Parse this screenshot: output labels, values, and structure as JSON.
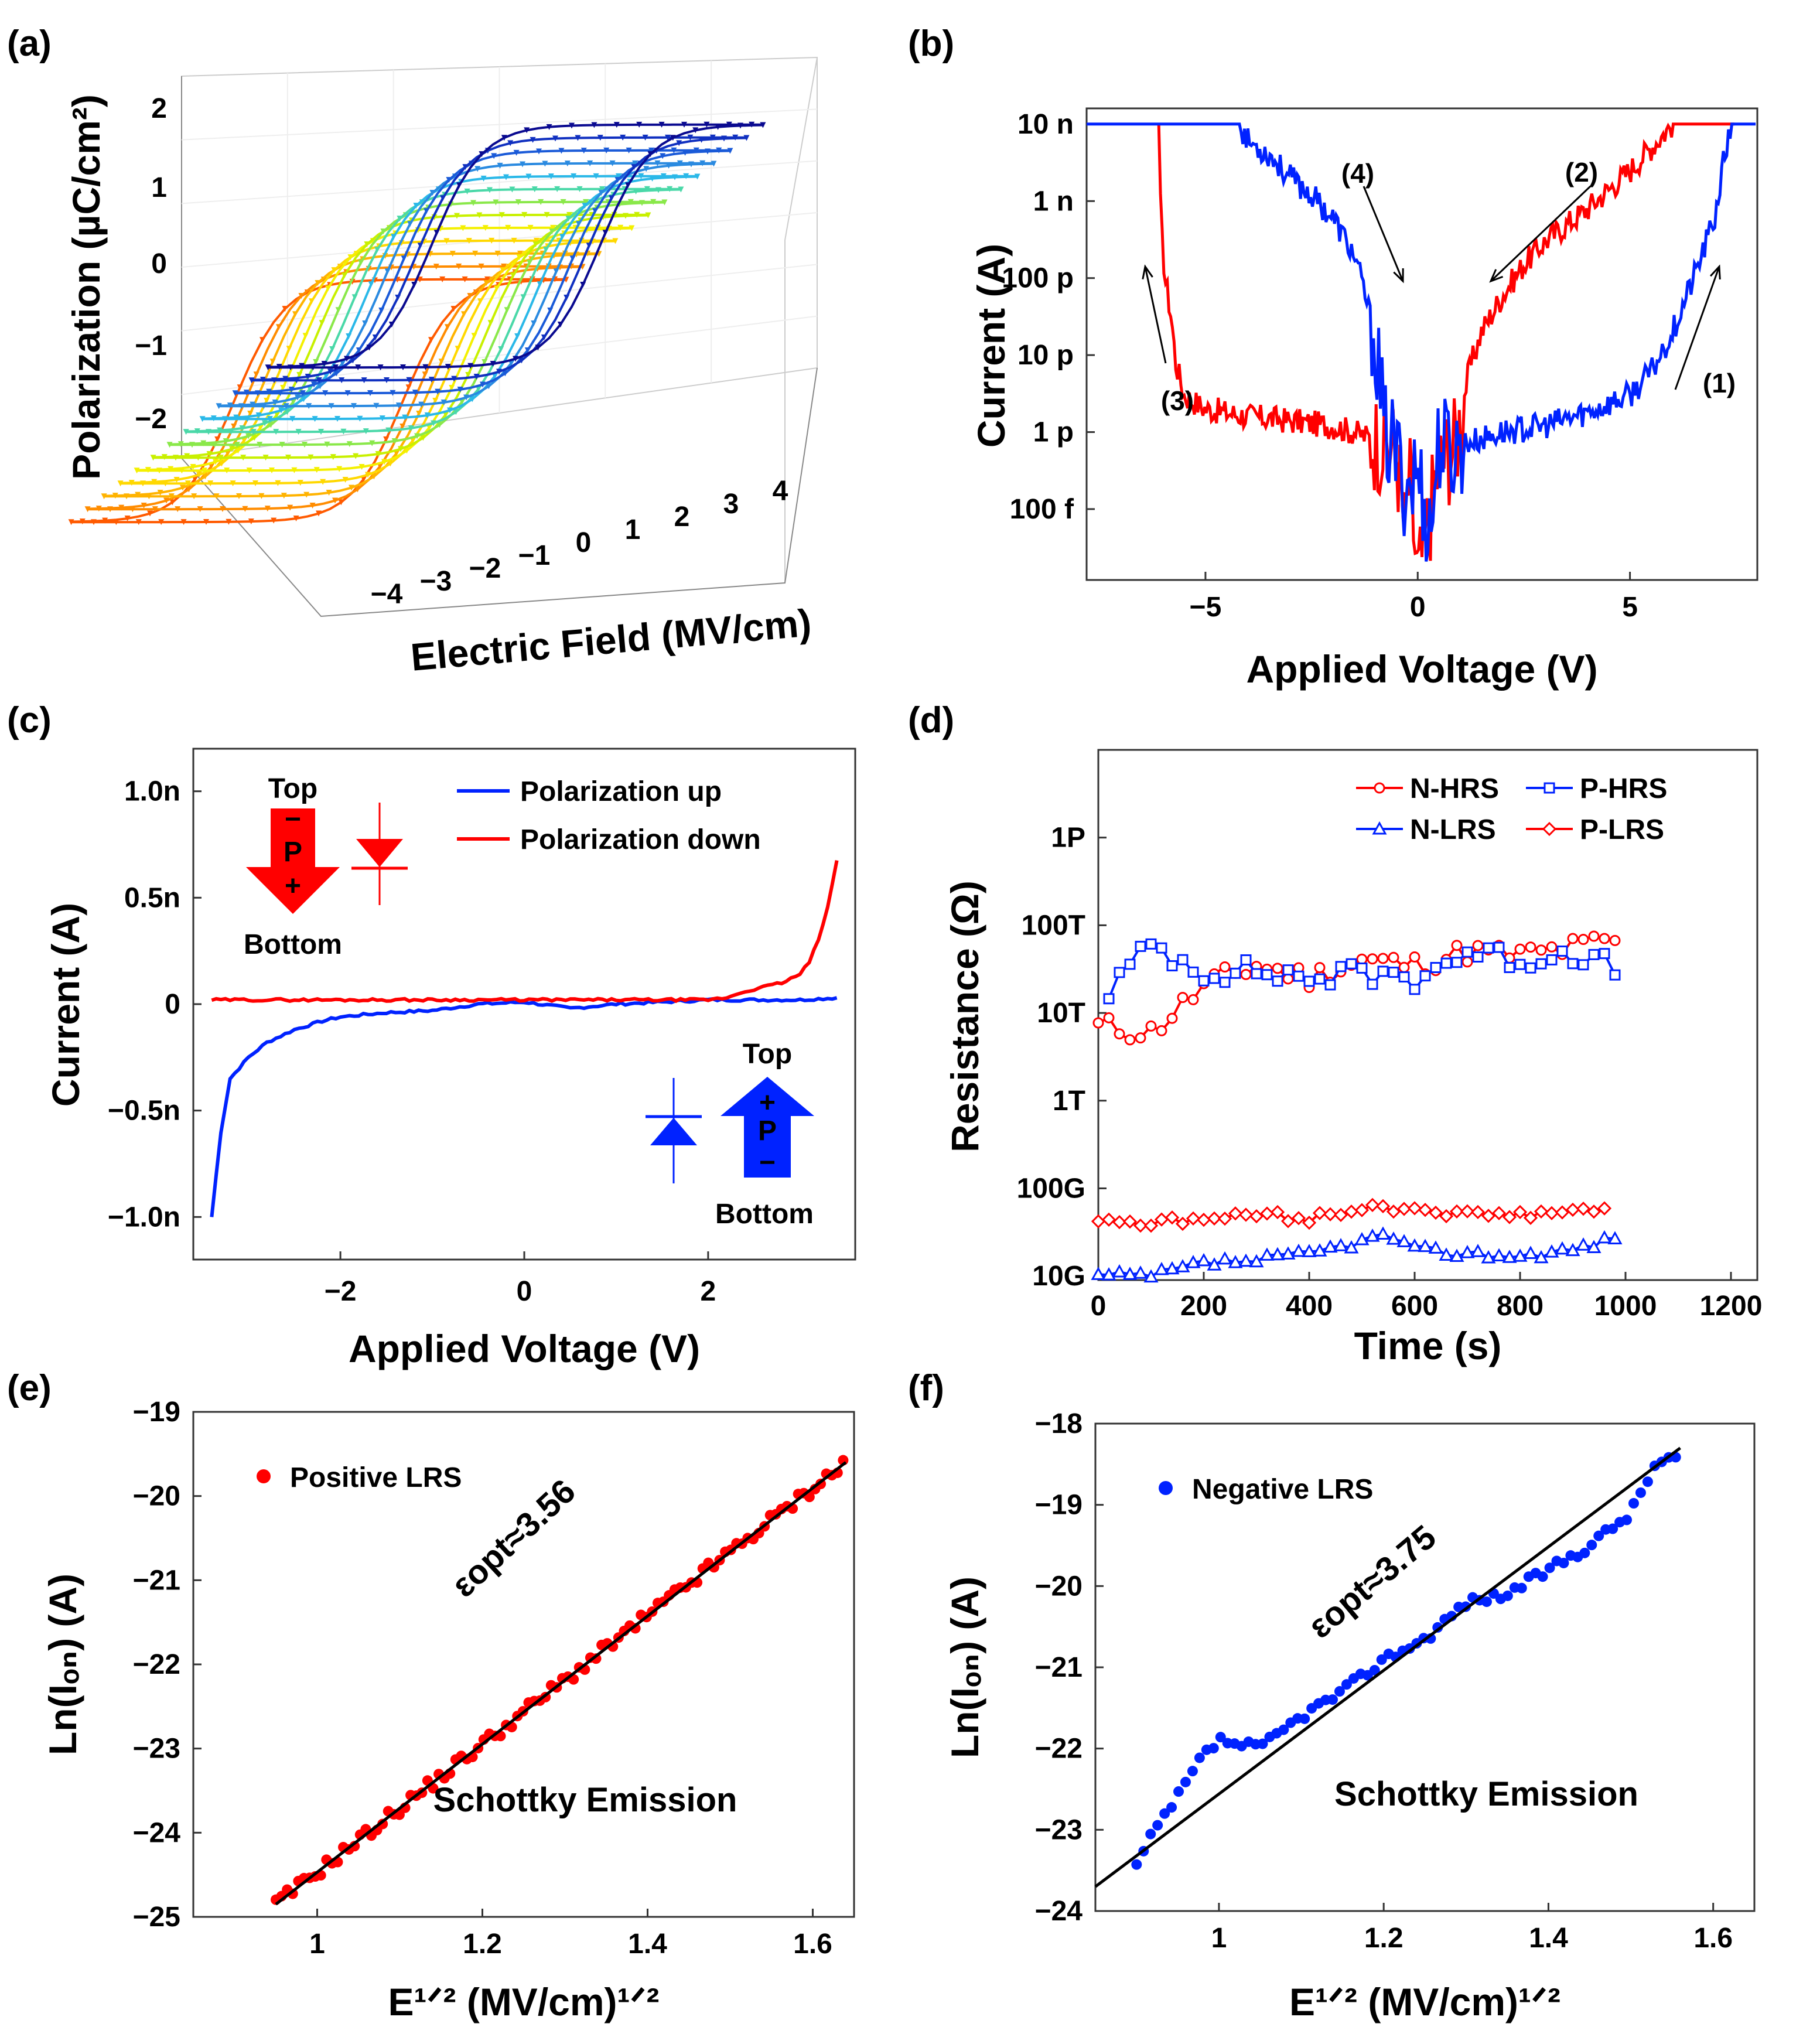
{
  "panel_labels": [
    "(a)",
    "(b)",
    "(c)",
    "(d)",
    "(e)",
    "(f)"
  ],
  "chart_data": [
    {
      "panel": "(a)",
      "type": "line",
      "projection": "3d",
      "xlabel": "Electric Field (MV/cm)",
      "ylabel": "Polarization (µC/cm²)",
      "x_ticks": [
        "−4",
        "−3",
        "−2",
        "−1",
        "0",
        "1",
        "2",
        "3",
        "4"
      ],
      "y_ticks": [
        "2",
        "1",
        "0",
        "−1",
        "−2"
      ],
      "xlim": [
        -4.5,
        4.5
      ],
      "ylim": [
        -2.6,
        2.3
      ],
      "loop_count": 13,
      "loop_colors": [
        "#ff5a00",
        "#ff8c00",
        "#ffb300",
        "#ffd800",
        "#f4f000",
        "#c8f000",
        "#8ae84a",
        "#4ad8a8",
        "#2ab8e8",
        "#2a8ae0",
        "#1a5ad8",
        "#1030c0",
        "#0a0a90"
      ],
      "loop_Pr": 1.85,
      "loop_Ec": 1.5
    },
    {
      "panel": "(b)",
      "type": "line",
      "yscale": "log",
      "xlabel": "Applied Voltage (V)",
      "ylabel": "Current (A)",
      "x_ticks": [
        "−5",
        "0",
        "5"
      ],
      "y_ticks": [
        "10 n",
        "1 n",
        "100 p",
        "10 p",
        "1 p",
        "100 f"
      ],
      "xlim": [
        -7.8,
        8
      ],
      "ylim": [
        1.2e-14,
        1.6e-08
      ],
      "compliance": 1e-08,
      "annotations": [
        "(1)",
        "(2)",
        "(3)",
        "(4)"
      ],
      "series": [
        {
          "color": "#ff0000",
          "x": [
            -6.1,
            -6.05,
            -5.95,
            -5.8,
            -5.7,
            -5.5,
            -5,
            -4,
            -3,
            -2,
            -1.5,
            -1,
            -0.5,
            -0.3,
            -0.2,
            0,
            0.5,
            0.9,
            1,
            1.2,
            1.5,
            2,
            2.5,
            3,
            4,
            5,
            5.5,
            6,
            6.5,
            7,
            7.5
          ],
          "y": [
            1e-08,
            5e-10,
            1e-10,
            3e-11,
            8e-12,
            3e-12,
            2e-12,
            1.6e-12,
            1.4e-12,
            1.2e-12,
            1e-12,
            8e-13,
            6e-13,
            5e-14,
            3e-13,
            1.2e-14,
            4e-13,
            7e-13,
            1.5e-12,
            6e-12,
            2e-11,
            6e-11,
            1.5e-10,
            3e-10,
            8e-10,
            2.5e-09,
            5e-09,
            1e-08,
            1e-08,
            1e-08,
            1e-08
          ]
        },
        {
          "color": "#0022ff",
          "x": [
            -7.8,
            -6,
            -5,
            -4.2,
            -4,
            -3.5,
            -3,
            -2.5,
            -2,
            -1.5,
            -1.2,
            -1,
            -0.9,
            -0.8,
            -0.5,
            -0.3,
            0,
            0.3,
            0.5,
            0.8,
            1,
            1.5,
            2,
            3,
            4,
            5,
            5.5,
            6,
            6.5,
            7,
            7.2,
            7.4,
            8
          ],
          "y": [
            1e-08,
            1e-08,
            1e-08,
            1e-08,
            6e-09,
            4e-09,
            2e-09,
            1.2e-09,
            6e-10,
            2e-10,
            5e-11,
            1.5e-11,
            5e-12,
            1e-12,
            5e-13,
            2e-13,
            3e-13,
            5e-14,
            8e-13,
            5e-13,
            7e-13,
            8e-13,
            1e-12,
            1.2e-12,
            1.8e-12,
            3e-12,
            6e-12,
            2e-11,
            1e-10,
            6e-10,
            3e-09,
            1e-08,
            1e-08
          ]
        }
      ]
    },
    {
      "panel": "(c)",
      "type": "line",
      "xlabel": "Applied Voltage (V)",
      "ylabel": "Current (A)",
      "x_ticks": [
        "−2",
        "0",
        "2"
      ],
      "y_ticks": [
        "1.0n",
        "0.5n",
        "0",
        "−0.5n",
        "−1.0n"
      ],
      "xlim": [
        -3.6,
        3.6
      ],
      "ylim": [
        -1.2,
        1.2
      ],
      "diagram_text": {
        "top": "Top",
        "bottom": "Bottom",
        "p": "P",
        "minus": "−",
        "plus": "+"
      },
      "series": [
        {
          "name": "Polarization up",
          "color": "#0022ff",
          "x": [
            -3.4,
            -3.3,
            -3.2,
            -3.1,
            -3.0,
            -2.8,
            -2.5,
            -2.2,
            -2.0,
            -1.5,
            -1.0,
            -0.5,
            0,
            0.5,
            1.0,
            1.5,
            2.0,
            2.5,
            3.0,
            3.4
          ],
          "y": [
            -1.0,
            -0.6,
            -0.35,
            -0.3,
            -0.25,
            -0.18,
            -0.12,
            -0.08,
            -0.06,
            -0.04,
            -0.03,
            0.0,
            0.01,
            -0.02,
            0.0,
            0.01,
            0.02,
            0.02,
            0.02,
            0.03
          ]
        },
        {
          "name": "Polarization down",
          "color": "#ff0000",
          "x": [
            -3.4,
            -3.0,
            -2.5,
            -2.0,
            -1.5,
            -1.0,
            -0.5,
            0,
            0.5,
            1.0,
            1.5,
            2.0,
            2.2,
            2.4,
            2.6,
            2.8,
            3.0,
            3.1,
            3.2,
            3.3,
            3.4
          ],
          "y": [
            0.02,
            0.02,
            0.02,
            0.02,
            0.02,
            0.02,
            0.02,
            0.02,
            0.02,
            0.02,
            0.02,
            0.02,
            0.03,
            0.06,
            0.08,
            0.1,
            0.14,
            0.2,
            0.3,
            0.45,
            0.68
          ]
        }
      ]
    },
    {
      "panel": "(d)",
      "type": "line",
      "yscale": "log",
      "xlabel": "Time (s)",
      "ylabel": "Resistance (Ω)",
      "x_ticks": [
        "0",
        "200",
        "400",
        "600",
        "800",
        "1000",
        "1200"
      ],
      "y_ticks": [
        "1P",
        "100T",
        "10T",
        "1T",
        "100G",
        "10G"
      ],
      "xlim": [
        0,
        1250
      ],
      "ylim": [
        9000000000.0,
        1e+16
      ],
      "series": [
        {
          "name": "N-HRS",
          "color": "#ff0000",
          "marker": "circle",
          "x": [
            0,
            100,
            200,
            300,
            400,
            500,
            600,
            700,
            800,
            900,
            990
          ],
          "y": [
            7000000000000.0,
            6000000000000.0,
            20000000000000.0,
            35000000000000.0,
            25000000000000.0,
            40000000000000.0,
            35000000000000.0,
            50000000000000.0,
            45000000000000.0,
            55000000000000.0,
            70000000000000.0
          ]
        },
        {
          "name": "P-HRS",
          "color": "#0022ff",
          "marker": "square",
          "x": [
            20,
            100,
            200,
            300,
            400,
            500,
            600,
            700,
            800,
            900,
            990
          ],
          "y": [
            18000000000000.0,
            60000000000000.0,
            30000000000000.0,
            30000000000000.0,
            25000000000000.0,
            28000000000000.0,
            25000000000000.0,
            50000000000000.0,
            40000000000000.0,
            50000000000000.0,
            30000000000000.0
          ]
        },
        {
          "name": "N-LRS",
          "color": "#0022ff",
          "marker": "triangle",
          "x": [
            0,
            100,
            200,
            300,
            400,
            500,
            550,
            600,
            700,
            800,
            900,
            990
          ],
          "y": [
            10000000000.0,
            10000000000.0,
            14000000000.0,
            15000000000.0,
            18000000000.0,
            25000000000.0,
            30000000000.0,
            20000000000.0,
            18000000000.0,
            17000000000.0,
            20000000000.0,
            28000000000.0
          ]
        },
        {
          "name": "P-LRS",
          "color": "#ff0000",
          "marker": "diamond",
          "x": [
            0,
            100,
            200,
            300,
            400,
            500,
            600,
            700,
            800,
            900,
            970
          ],
          "y": [
            45000000000.0,
            40000000000.0,
            45000000000.0,
            50000000000.0,
            45000000000.0,
            60000000000.0,
            60000000000.0,
            50000000000.0,
            50000000000.0,
            55000000000.0,
            60000000000.0
          ]
        }
      ]
    },
    {
      "panel": "(e)",
      "type": "scatter",
      "xlabel": "E¹ᐟ² (MV/cm)¹ᐟ²",
      "ylabel": "Ln(Iₒₙ) (A)",
      "x_ticks": [
        "1",
        "1.2",
        "1.4",
        "1.6"
      ],
      "y_ticks": [
        "−19",
        "−20",
        "−21",
        "−22",
        "−23",
        "−24",
        "−25"
      ],
      "xlim": [
        0.85,
        1.65
      ],
      "ylim": [
        -25,
        -19
      ],
      "series_name": "Positive LRS",
      "color": "#ff0000",
      "fit": {
        "x": [
          0.95,
          1.64
        ],
        "y": [
          -24.85,
          -19.6
        ]
      },
      "x_range": [
        0.95,
        1.64
      ],
      "permittivity_label": "εopt≈3.56",
      "method_label": "Schottky Emission"
    },
    {
      "panel": "(f)",
      "type": "scatter",
      "xlabel": "E¹ᐟ² (MV/cm)¹ᐟ²",
      "ylabel": "Ln(Iₒₙ) (A)",
      "x_ticks": [
        "1",
        "1.2",
        "1.4",
        "1.6"
      ],
      "y_ticks": [
        "−18",
        "−19",
        "−20",
        "−21",
        "−22",
        "−23",
        "−24"
      ],
      "xlim": [
        0.85,
        1.65
      ],
      "ylim": [
        -24,
        -18
      ],
      "series_name": "Negative LRS",
      "color": "#0022ff",
      "fit": {
        "x": [
          0.85,
          1.56
        ],
        "y": [
          -23.7,
          -18.3
        ]
      },
      "points": {
        "x": [
          0.9,
          0.92,
          0.95,
          0.98,
          1.0,
          1.05,
          1.1,
          1.15,
          1.2,
          1.25,
          1.3,
          1.35,
          1.4,
          1.45,
          1.5,
          1.53,
          1.56
        ],
        "y": [
          -23.45,
          -23.05,
          -22.6,
          -22.1,
          -21.9,
          -22.0,
          -21.6,
          -21.3,
          -20.9,
          -20.65,
          -20.2,
          -20.1,
          -19.8,
          -19.5,
          -19.1,
          -18.5,
          -18.4
        ]
      },
      "permittivity_label": "εopt≈3.75",
      "method_label": "Schottky Emission"
    }
  ]
}
